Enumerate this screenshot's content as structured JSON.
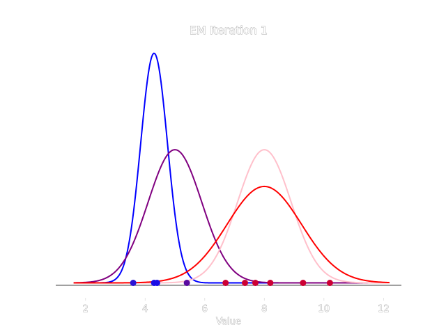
{
  "chart_data": {
    "type": "line",
    "title": "EM Iteration 1",
    "xlabel": "Value",
    "ylabel": "",
    "xlim": [
      1.0,
      12.6
    ],
    "ylim": [
      -0.065,
      1.05
    ],
    "xticks": [
      2,
      4,
      6,
      8,
      10,
      12
    ],
    "grid": false,
    "legend": "none",
    "series": [
      {
        "color": "#0000ff",
        "mu": 4.3,
        "sigma": 0.45,
        "peak": 1.0
      },
      {
        "color": "#800080",
        "mu": 5.0,
        "sigma": 0.9,
        "peak": 0.58
      },
      {
        "color": "#ffc0cb",
        "mu": 8.0,
        "sigma": 0.9,
        "peak": 0.58
      },
      {
        "color": "#ff0000",
        "mu": 8.0,
        "sigma": 1.25,
        "peak": 0.42
      }
    ],
    "curve_x_range": [
      1.6,
      12.2
    ],
    "points": [
      {
        "x": 3.6,
        "color": "#2a13d6"
      },
      {
        "x": 4.3,
        "color": "#1a0de6"
      },
      {
        "x": 4.4,
        "color": "#1a0de6"
      },
      {
        "x": 5.4,
        "color": "#5a0aa0"
      },
      {
        "x": 6.7,
        "color": "#cc0033"
      },
      {
        "x": 7.35,
        "color": "#cc0033"
      },
      {
        "x": 7.7,
        "color": "#cc0033"
      },
      {
        "x": 8.2,
        "color": "#cc0033"
      },
      {
        "x": 9.3,
        "color": "#cc0033"
      },
      {
        "x": 10.2,
        "color": "#cc0033"
      }
    ]
  }
}
